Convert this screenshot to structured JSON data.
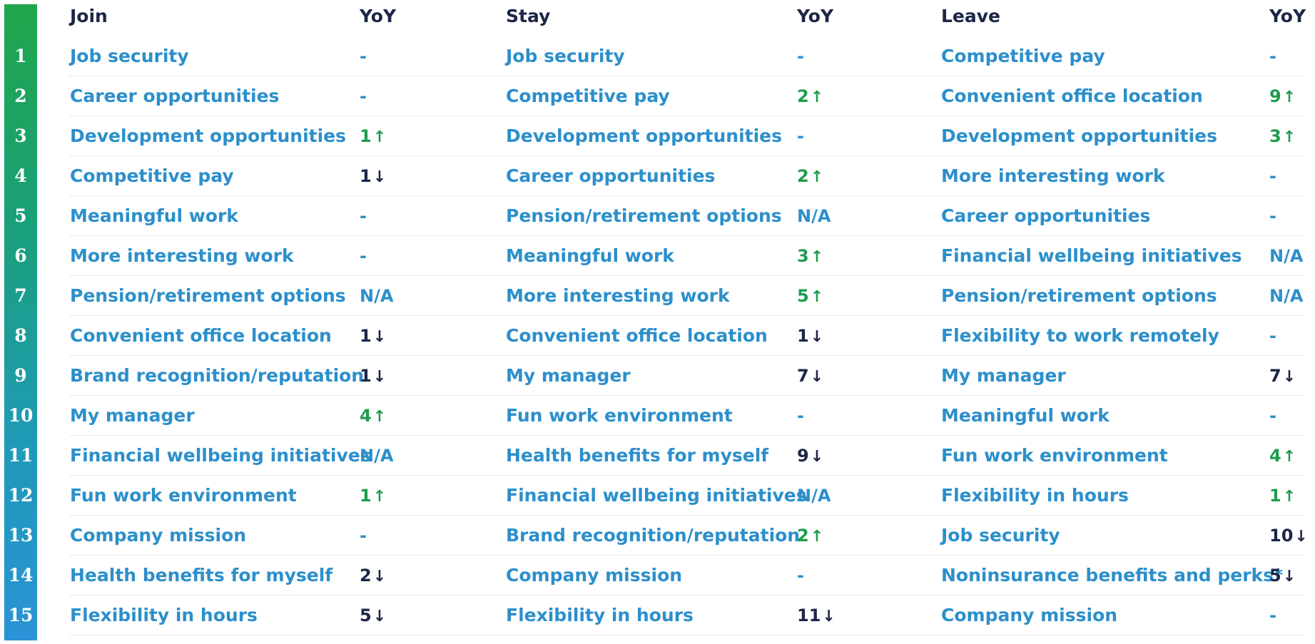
{
  "headers": {
    "join": "Join",
    "join_yoy": "YoY",
    "stay": "Stay",
    "stay_yoy": "YoY",
    "leave": "Leave",
    "leave_yoy": "YoY"
  },
  "colors": {
    "up": "#1f9b4d",
    "down": "#1c2647",
    "neutral": "#2c8fcb",
    "header": "#1c2647"
  },
  "rows": [
    {
      "rank": "1",
      "join": "Job security",
      "join_yoy": "-",
      "join_dir": "none",
      "stay": "Job security",
      "stay_yoy": "-",
      "stay_dir": "none",
      "leave": "Competitive pay",
      "leave_yoy": "-",
      "leave_dir": "none"
    },
    {
      "rank": "2",
      "join": "Career opportunities",
      "join_yoy": "-",
      "join_dir": "none",
      "stay": "Competitive pay",
      "stay_yoy": "2",
      "stay_dir": "up",
      "leave": "Convenient office location",
      "leave_yoy": "9",
      "leave_dir": "up"
    },
    {
      "rank": "3",
      "join": "Development opportunities",
      "join_yoy": "1",
      "join_dir": "up",
      "stay": "Development opportunities",
      "stay_yoy": "-",
      "stay_dir": "none",
      "leave": "Development opportunities",
      "leave_yoy": "3",
      "leave_dir": "up"
    },
    {
      "rank": "4",
      "join": "Competitive pay",
      "join_yoy": "1",
      "join_dir": "down",
      "stay": "Career opportunities",
      "stay_yoy": "2",
      "stay_dir": "up",
      "leave": "More interesting work",
      "leave_yoy": "-",
      "leave_dir": "none"
    },
    {
      "rank": "5",
      "join": "Meaningful work",
      "join_yoy": "-",
      "join_dir": "none",
      "stay": "Pension/retirement options",
      "stay_yoy": "N/A",
      "stay_dir": "none",
      "leave": "Career opportunities",
      "leave_yoy": "-",
      "leave_dir": "none"
    },
    {
      "rank": "6",
      "join": "More interesting work",
      "join_yoy": "-",
      "join_dir": "none",
      "stay": "Meaningful work",
      "stay_yoy": "3",
      "stay_dir": "up",
      "leave": "Financial wellbeing initiatives",
      "leave_yoy": "N/A",
      "leave_dir": "none"
    },
    {
      "rank": "7",
      "join": "Pension/retirement options",
      "join_yoy": "N/A",
      "join_dir": "none",
      "stay": "More interesting work",
      "stay_yoy": "5",
      "stay_dir": "up",
      "leave": "Pension/retirement options",
      "leave_yoy": "N/A",
      "leave_dir": "none"
    },
    {
      "rank": "8",
      "join": "Convenient office location",
      "join_yoy": "1",
      "join_dir": "down",
      "stay": "Convenient office location",
      "stay_yoy": "1",
      "stay_dir": "down",
      "leave": "Flexibility to work remotely",
      "leave_yoy": "-",
      "leave_dir": "none"
    },
    {
      "rank": "9",
      "join": "Brand recognition/reputation",
      "join_yoy": "1",
      "join_dir": "down",
      "stay": "My manager",
      "stay_yoy": "7",
      "stay_dir": "down",
      "leave": "My manager",
      "leave_yoy": "7",
      "leave_dir": "down"
    },
    {
      "rank": "10",
      "join": "My manager",
      "join_yoy": "4",
      "join_dir": "up",
      "stay": "Fun work environment",
      "stay_yoy": "-",
      "stay_dir": "none",
      "leave": "Meaningful work",
      "leave_yoy": "-",
      "leave_dir": "none"
    },
    {
      "rank": "11",
      "join": "Financial wellbeing initiatives",
      "join_yoy": "N/A",
      "join_dir": "none",
      "stay": "Health benefits for myself",
      "stay_yoy": "9",
      "stay_dir": "down",
      "leave": "Fun work environment",
      "leave_yoy": "4",
      "leave_dir": "up"
    },
    {
      "rank": "12",
      "join": "Fun work environment",
      "join_yoy": "1",
      "join_dir": "up",
      "stay": "Financial wellbeing initiatives",
      "stay_yoy": "N/A",
      "stay_dir": "none",
      "leave": "Flexibility in hours",
      "leave_yoy": "1",
      "leave_dir": "up"
    },
    {
      "rank": "13",
      "join": "Company mission",
      "join_yoy": "-",
      "join_dir": "none",
      "stay": "Brand recognition/reputation",
      "stay_yoy": "2",
      "stay_dir": "up",
      "leave": "Job security",
      "leave_yoy": "10",
      "leave_dir": "down"
    },
    {
      "rank": "14",
      "join": "Health benefits for myself",
      "join_yoy": "2",
      "join_dir": "down",
      "stay": "Company mission",
      "stay_yoy": "-",
      "stay_dir": "none",
      "leave": "Noninsurance benefits and perks*",
      "leave_yoy": "5",
      "leave_dir": "down"
    },
    {
      "rank": "15",
      "join": "Flexibility in hours",
      "join_yoy": "5",
      "join_dir": "down",
      "stay": "Flexibility in hours",
      "stay_yoy": "11",
      "stay_dir": "down",
      "leave": "Company mission",
      "leave_yoy": "-",
      "leave_dir": "none"
    }
  ]
}
